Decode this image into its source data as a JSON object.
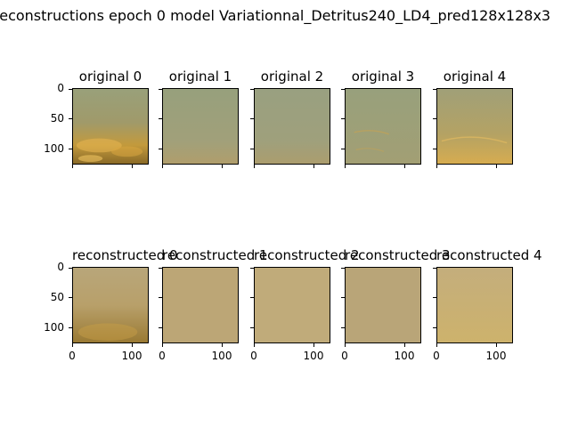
{
  "suptitle": "reconstructions epoch 0 model Variationnal_Detritus240_LD4_pred128x128x3",
  "chart_data": {
    "type": "image_grid",
    "rows": 2,
    "cols": 5,
    "row1_titles": [
      "original 0",
      "original 1",
      "original 2",
      "original 3",
      "original 4"
    ],
    "row2_titles": [
      "reconstructed 0",
      "reconstructed 1",
      "reconstructed 2",
      "reconstructed 3",
      "reconstructed 4"
    ],
    "yticks": [
      "0",
      "50",
      "100"
    ],
    "xticks": [
      "0",
      "100"
    ],
    "ylim": [
      0,
      127
    ],
    "xlim": [
      0,
      127
    ],
    "image_colors": {
      "original": [
        "#a89a62",
        "#9da07c",
        "#9c9e7d",
        "#9ba07c",
        "#b4a266"
      ],
      "reconstructed": [
        "#b49e62",
        "#bba576",
        "#bfaa78",
        "#b9a577",
        "#c7b075"
      ]
    }
  }
}
